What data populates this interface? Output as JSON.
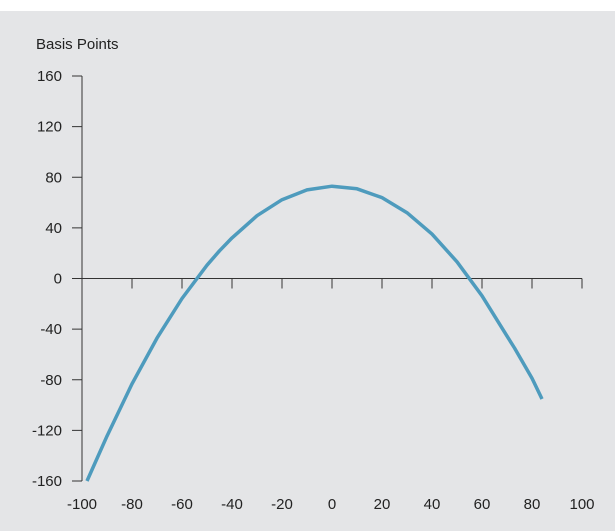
{
  "chart_data": {
    "type": "line",
    "title": "",
    "xlabel": "",
    "ylabel": "Basis Points",
    "xlim": [
      -100,
      100
    ],
    "ylim": [
      -160,
      160
    ],
    "x_ticks": [
      -100,
      -80,
      -60,
      -40,
      -20,
      0,
      20,
      40,
      60,
      80,
      100
    ],
    "y_ticks": [
      160,
      120,
      80,
      40,
      0,
      -40,
      -80,
      -120,
      -160
    ],
    "grid": false,
    "series": [
      {
        "name": "",
        "color": "#4e9bbd",
        "x": [
          -98,
          -90,
          -80,
          -70,
          -60,
          -50,
          -45,
          -40,
          -30,
          -20,
          -10,
          0,
          10,
          17,
          20,
          30,
          40,
          50,
          60,
          70,
          73,
          80,
          84
        ],
        "y": [
          -160,
          -124.5,
          -83.3,
          -47.1,
          -15.8,
          10.5,
          21.9,
          32.1,
          49.6,
          62.3,
          70.0,
          72.9,
          70.9,
          66.0,
          63.9,
          52.0,
          35.1,
          13.2,
          -13.7,
          -45.5,
          -54.9,
          -78.8,
          -95.2
        ]
      }
    ]
  }
}
